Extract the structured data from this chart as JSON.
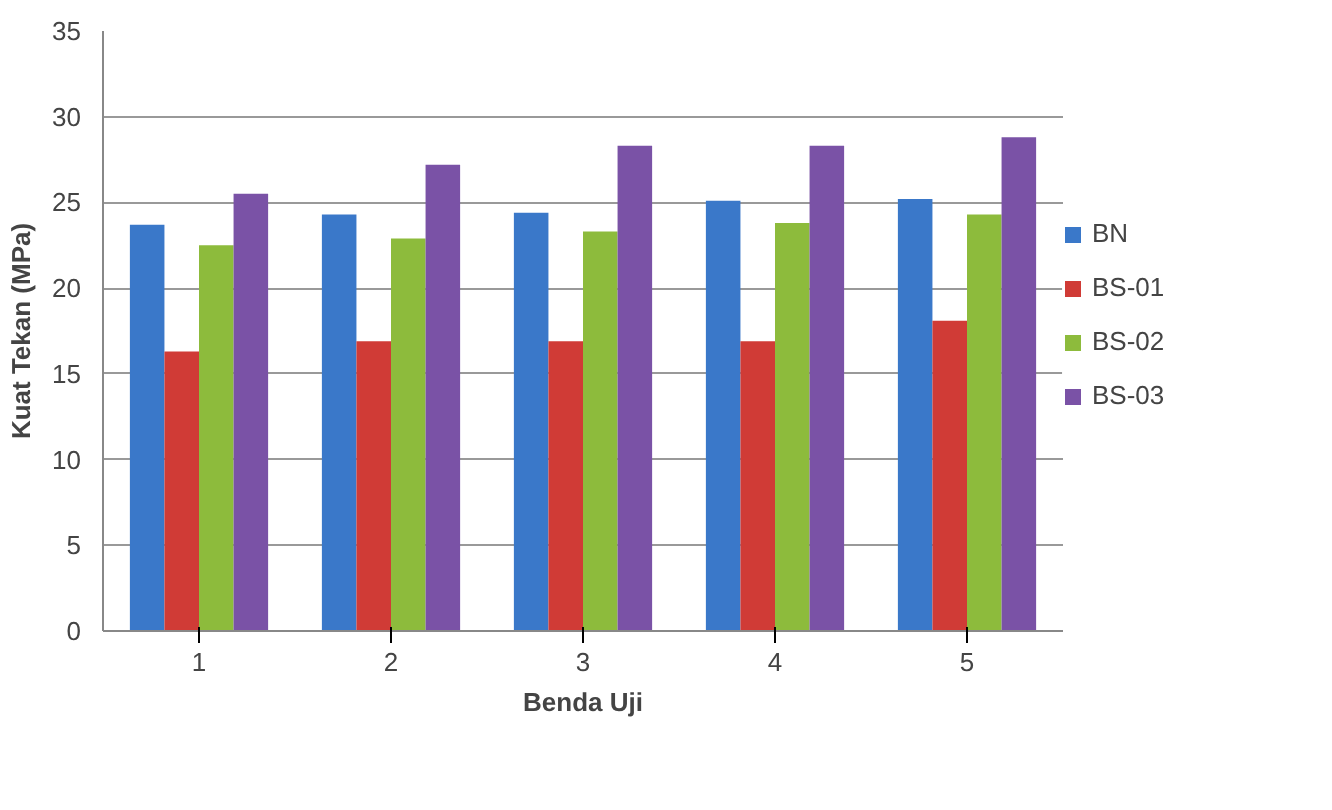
{
  "chart_data": {
    "type": "bar",
    "xlabel": "Benda Uji",
    "ylabel": "Kuat Tekan (MPa)",
    "categories": [
      "1",
      "2",
      "3",
      "4",
      "5"
    ],
    "series": [
      {
        "name": "BN",
        "color": "#3a78c9",
        "values": [
          23.7,
          24.3,
          24.4,
          25.1,
          25.2
        ]
      },
      {
        "name": "BS-01",
        "color": "#d03b36",
        "values": [
          16.3,
          16.9,
          16.9,
          16.9,
          18.1
        ]
      },
      {
        "name": "BS-02",
        "color": "#8dbb3c",
        "values": [
          22.5,
          22.9,
          23.3,
          23.8,
          24.3
        ]
      },
      {
        "name": "BS-03",
        "color": "#7a52a6",
        "values": [
          25.5,
          27.2,
          28.3,
          28.3,
          28.8
        ]
      }
    ],
    "ylim": [
      0,
      35
    ],
    "yticks": [
      0,
      5,
      10,
      15,
      20,
      25,
      30,
      35
    ],
    "grid": "y",
    "legend": "right"
  }
}
